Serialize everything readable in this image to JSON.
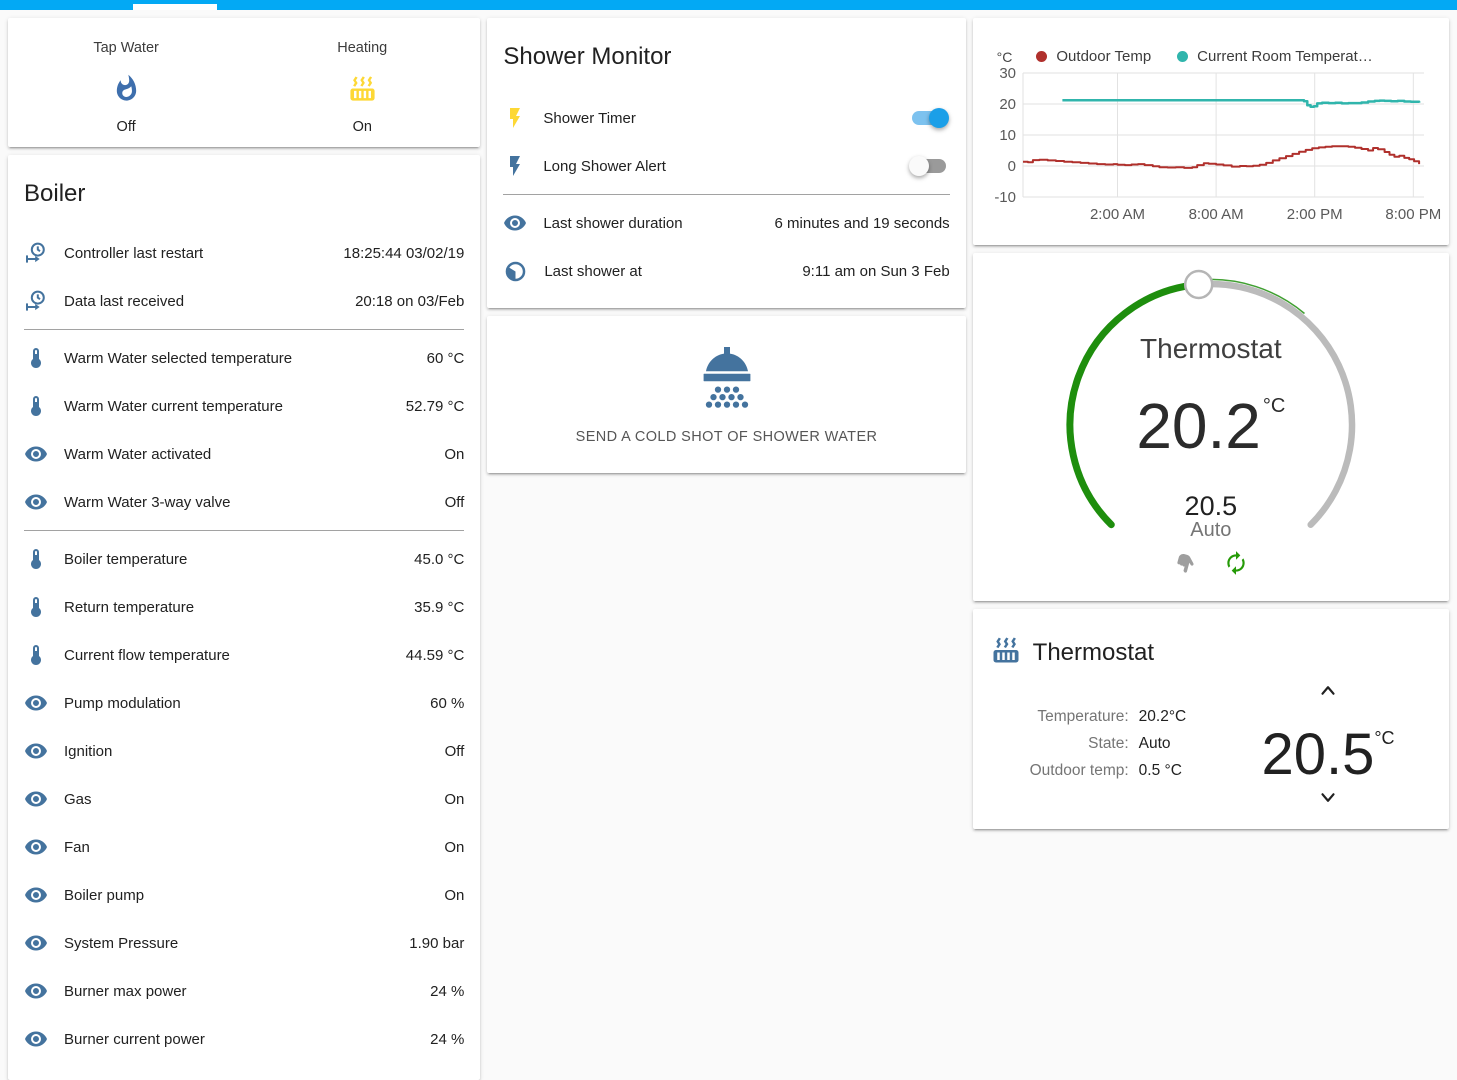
{
  "header": {
    "accent_color": "#03a9f4"
  },
  "glance": {
    "items": [
      {
        "name": "Tap Water",
        "state": "Off",
        "icon": "fire",
        "icon_color": "#3e6fad"
      },
      {
        "name": "Heating",
        "state": "On",
        "icon": "radiator",
        "icon_color": "#fdd835"
      }
    ]
  },
  "boiler": {
    "title": "Boiler",
    "rows": [
      {
        "icon": "clock-start",
        "label": "Controller last restart",
        "value": "18:25:44 03/02/19",
        "divider_after": false
      },
      {
        "icon": "clock-start",
        "label": "Data last received",
        "value": "20:18 on 03/Feb",
        "divider_after": true
      },
      {
        "icon": "thermometer",
        "label": "Warm Water selected temperature",
        "value": "60 °C",
        "divider_after": false
      },
      {
        "icon": "thermometer",
        "label": "Warm Water current temperature",
        "value": "52.79 °C",
        "divider_after": false
      },
      {
        "icon": "eye",
        "label": "Warm Water activated",
        "value": "On",
        "divider_after": false
      },
      {
        "icon": "eye",
        "label": "Warm Water 3-way valve",
        "value": "Off",
        "divider_after": true
      },
      {
        "icon": "thermometer",
        "label": "Boiler temperature",
        "value": "45.0 °C",
        "divider_after": false
      },
      {
        "icon": "thermometer",
        "label": "Return temperature",
        "value": "35.9 °C",
        "divider_after": false
      },
      {
        "icon": "thermometer",
        "label": "Current flow temperature",
        "value": "44.59 °C",
        "divider_after": false
      },
      {
        "icon": "eye",
        "label": "Pump modulation",
        "value": "60 %",
        "divider_after": false
      },
      {
        "icon": "eye",
        "label": "Ignition",
        "value": "Off",
        "divider_after": false
      },
      {
        "icon": "eye",
        "label": "Gas",
        "value": "On",
        "divider_after": false
      },
      {
        "icon": "eye",
        "label": "Fan",
        "value": "On",
        "divider_after": false
      },
      {
        "icon": "eye",
        "label": "Boiler pump",
        "value": "On",
        "divider_after": false
      },
      {
        "icon": "eye",
        "label": "System Pressure",
        "value": "1.90 bar",
        "divider_after": false
      },
      {
        "icon": "eye",
        "label": "Burner max power",
        "value": "24 %",
        "divider_after": false
      },
      {
        "icon": "eye",
        "label": "Burner current power",
        "value": "24 %",
        "divider_after": false
      }
    ],
    "icon_color": "#44739e"
  },
  "shower_monitor": {
    "title": "Shower Monitor",
    "toggles": [
      {
        "label": "Shower Timer",
        "icon": "flash",
        "icon_color": "#fdd835",
        "state": "on"
      },
      {
        "label": "Long Shower Alert",
        "icon": "flash",
        "icon_color": "#44739e",
        "state": "off"
      }
    ],
    "info": [
      {
        "icon": "eye",
        "label": "Last shower duration",
        "value": "6 minutes and 19 seconds"
      },
      {
        "icon": "clock",
        "label": "Last shower at",
        "value": "9:11 am on Sun 3 Feb"
      }
    ]
  },
  "shower_button": {
    "label": "SEND A COLD SHOT OF SHOWER WATER",
    "icon_color": "#44739e"
  },
  "chart_data": {
    "type": "line",
    "title": "",
    "xlabel": "",
    "ylabel": "°C",
    "grid": true,
    "legend_position": "top",
    "y_axis": {
      "label": "°C",
      "range": [
        -10,
        30
      ],
      "ticks": [
        "30",
        "20",
        "10",
        "0",
        "-10"
      ],
      "tick_values": [
        30,
        20,
        10,
        0,
        -10
      ]
    },
    "x_axis": {
      "range": [
        0,
        24.4
      ],
      "ticks": [
        {
          "t": 5.75,
          "label": "2:00 AM"
        },
        {
          "t": 11.75,
          "label": "8:00 AM"
        },
        {
          "t": 17.75,
          "label": "2:00 PM"
        },
        {
          "t": 23.75,
          "label": "8:00 PM"
        }
      ]
    },
    "series": [
      {
        "name": "Outdoor Temp",
        "color": "#b0302c",
        "width": 2,
        "points": [
          [
            0,
            1.4
          ],
          [
            0.3,
            1.2
          ],
          [
            0.6,
            1.9
          ],
          [
            1.0,
            2.0
          ],
          [
            1.5,
            1.8
          ],
          [
            2.0,
            1.6
          ],
          [
            2.5,
            1.4
          ],
          [
            3.0,
            1.2
          ],
          [
            3.5,
            1.0
          ],
          [
            4.0,
            0.8
          ],
          [
            4.5,
            0.6
          ],
          [
            5.0,
            0.5
          ],
          [
            5.5,
            0.6
          ],
          [
            5.75,
            0.4
          ],
          [
            6.2,
            0.3
          ],
          [
            6.6,
            0.5
          ],
          [
            7.0,
            0.6
          ],
          [
            7.4,
            0.3
          ],
          [
            7.9,
            -0.1
          ],
          [
            8.3,
            -0.4
          ],
          [
            8.8,
            -0.5
          ],
          [
            9.3,
            -0.4
          ],
          [
            9.8,
            -0.6
          ],
          [
            10.3,
            -0.4
          ],
          [
            10.6,
            0.3
          ],
          [
            11.0,
            0.9
          ],
          [
            11.3,
            0.7
          ],
          [
            11.75,
            0.5
          ],
          [
            12.2,
            0.2
          ],
          [
            12.7,
            -0.2
          ],
          [
            13.2,
            0.0
          ],
          [
            13.6,
            -0.1
          ],
          [
            14.0,
            0.1
          ],
          [
            14.4,
            0.4
          ],
          [
            14.8,
            1.0
          ],
          [
            15.2,
            1.8
          ],
          [
            15.6,
            2.5
          ],
          [
            16.0,
            3.2
          ],
          [
            16.4,
            3.9
          ],
          [
            16.8,
            4.6
          ],
          [
            17.2,
            5.2
          ],
          [
            17.6,
            5.7
          ],
          [
            18.0,
            6.0
          ],
          [
            18.4,
            6.2
          ],
          [
            18.8,
            6.4
          ],
          [
            19.3,
            6.4
          ],
          [
            19.8,
            6.2
          ],
          [
            20.2,
            5.9
          ],
          [
            20.6,
            5.5
          ],
          [
            21.0,
            5.0
          ],
          [
            21.3,
            5.8
          ],
          [
            21.6,
            5.4
          ],
          [
            22.0,
            4.5
          ],
          [
            22.3,
            3.6
          ],
          [
            22.6,
            3.0
          ],
          [
            22.9,
            3.3
          ],
          [
            23.2,
            2.6
          ],
          [
            23.5,
            2.2
          ],
          [
            23.8,
            1.5
          ],
          [
            24.1,
            0.6
          ]
        ]
      },
      {
        "name": "Current Room Temperat…",
        "color": "#30b5ac",
        "width": 2.5,
        "points": [
          [
            2.4,
            21.2
          ],
          [
            16.9,
            21.2
          ],
          [
            17.1,
            20.9
          ],
          [
            17.3,
            19.6
          ],
          [
            17.5,
            19.1
          ],
          [
            17.7,
            19.3
          ],
          [
            17.9,
            20.2
          ],
          [
            18.2,
            20.4
          ],
          [
            18.6,
            20.3
          ],
          [
            19.0,
            20.4
          ],
          [
            19.4,
            20.2
          ],
          [
            19.8,
            20.3
          ],
          [
            20.2,
            20.3
          ],
          [
            20.6,
            20.5
          ],
          [
            21.0,
            20.8
          ],
          [
            21.4,
            21.0
          ],
          [
            21.7,
            21.1
          ],
          [
            22.0,
            21.0
          ],
          [
            22.4,
            20.9
          ],
          [
            22.8,
            21.0
          ],
          [
            23.2,
            20.8
          ],
          [
            23.6,
            20.7
          ],
          [
            24.1,
            20.4
          ]
        ]
      }
    ]
  },
  "thermostat_dial": {
    "title": "Thermostat",
    "current": "20.2",
    "unit": "°C",
    "target": "20.5",
    "mode": "Auto",
    "arc_color": "#1e8e0d",
    "track_color": "#bbbbbb",
    "modes": [
      {
        "icon": "hand",
        "color": "#9e9e9e",
        "name": "manual"
      },
      {
        "icon": "autorenew",
        "color": "#259a07",
        "name": "auto"
      }
    ]
  },
  "thermostat_info": {
    "title": "Thermostat",
    "icon_color": "#44739e",
    "rows": [
      {
        "label": "Temperature:",
        "value": "20.2°C"
      },
      {
        "label": "State:",
        "value": "Auto"
      },
      {
        "label": "Outdoor temp:",
        "value": "0.5 °C"
      }
    ],
    "setpoint": "20.5",
    "setpoint_unit": "°C"
  }
}
